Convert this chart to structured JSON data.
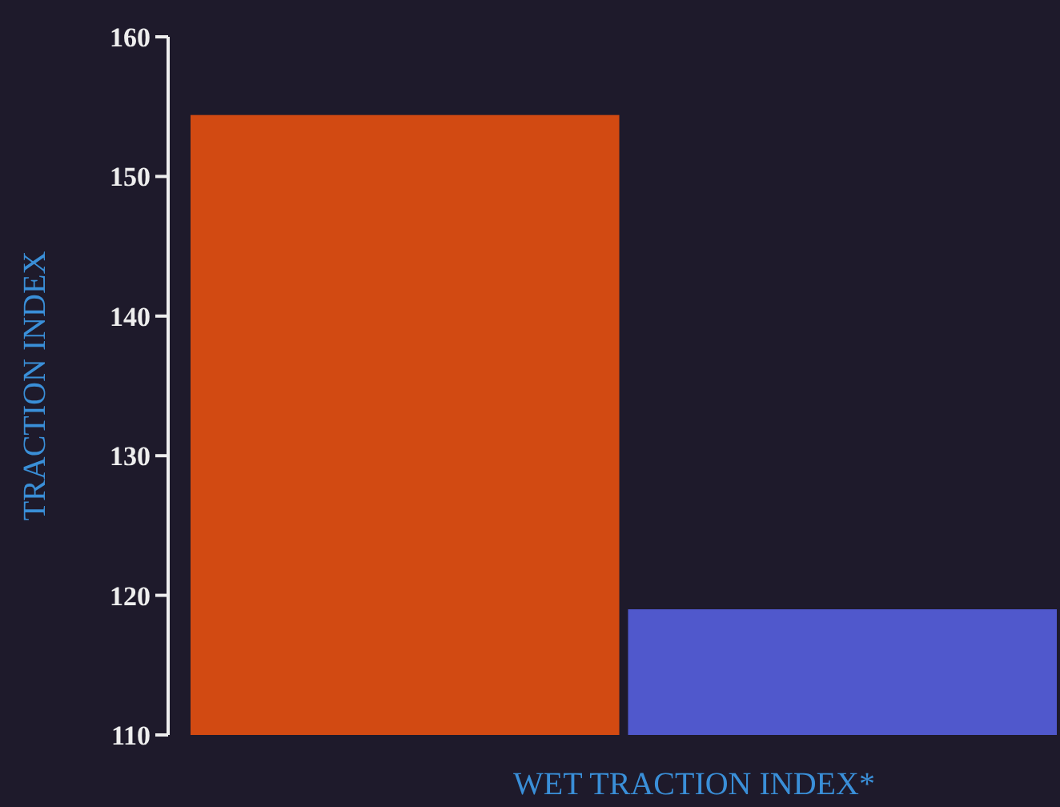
{
  "chart_data": {
    "type": "bar",
    "xlabel": "WET TRACTION INDEX*",
    "ylabel": "TRACTION INDEX",
    "categories": [
      null,
      null
    ],
    "values": [
      154.4,
      119
    ],
    "colors": [
      "#d24a12",
      "#5058cc"
    ],
    "ylim": [
      110,
      160
    ],
    "yticks": [
      110,
      120,
      130,
      140,
      150,
      160
    ],
    "grid": false
  }
}
